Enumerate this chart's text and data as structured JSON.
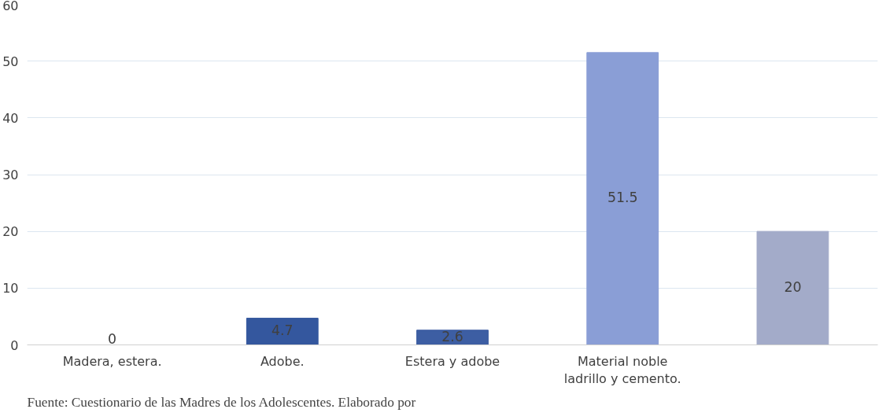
{
  "chart_data": {
    "type": "bar",
    "categories": [
      "Madera, estera.",
      "Adobe.",
      "Estera y adobe",
      "Material noble ladrillo y cemento.",
      null
    ],
    "values": [
      0,
      4.7,
      2.6,
      51.5,
      20
    ],
    "colors": [
      "#3f5fa0",
      "#34579e",
      "#3d5ea3",
      "#8a9ed6",
      "#a3abc9"
    ],
    "ylim": [
      0,
      60
    ],
    "yticks": [
      0,
      10,
      20,
      30,
      40,
      50,
      60
    ],
    "grid": "y",
    "data_labels": true,
    "annotations": [
      "Fuente: Cuestionario de las Madres de los Adolescentes. Elaborado por"
    ]
  }
}
